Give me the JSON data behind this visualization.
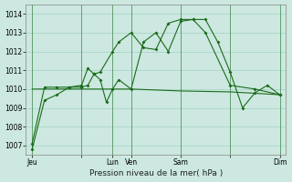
{
  "xlabel": "Pression niveau de la mer( hPa )",
  "bg_color": "#cce8e0",
  "grid_color": "#99ccbb",
  "line_color": "#1a6b1a",
  "ylim": [
    1006.5,
    1014.5
  ],
  "yticks": [
    1007,
    1008,
    1009,
    1010,
    1011,
    1012,
    1013,
    1014
  ],
  "xlim": [
    0,
    42
  ],
  "xtick_positions": [
    1,
    9,
    14,
    17,
    25,
    33,
    41
  ],
  "xtick_labels": [
    "Jeu",
    "",
    "Lun",
    "Ven",
    "Sam",
    "",
    "Dim"
  ],
  "vline_positions": [
    1,
    9,
    14,
    17,
    25,
    33,
    41
  ],
  "series1": {
    "x": [
      1,
      3,
      5,
      7,
      9,
      10,
      11,
      12,
      13,
      14,
      15,
      17,
      19,
      21,
      23,
      25,
      27,
      29,
      31,
      33,
      35,
      37,
      39,
      41
    ],
    "y": [
      1006.8,
      1009.4,
      1009.7,
      1010.1,
      1010.2,
      1011.1,
      1010.8,
      1010.5,
      1009.3,
      1010.0,
      1010.5,
      1010.0,
      1012.5,
      1013.0,
      1012.0,
      1013.6,
      1013.7,
      1013.7,
      1012.5,
      1010.9,
      1009.0,
      1009.8,
      1010.2,
      1009.7
    ]
  },
  "series2": {
    "x": [
      1,
      3,
      5,
      7,
      9,
      10,
      11,
      12,
      14,
      15,
      17,
      19,
      21,
      23,
      25,
      27,
      29,
      33,
      37,
      41
    ],
    "y": [
      1007.1,
      1010.1,
      1010.1,
      1010.1,
      1010.1,
      1010.2,
      1010.8,
      1010.9,
      1012.0,
      1012.5,
      1013.0,
      1012.2,
      1012.1,
      1013.5,
      1013.7,
      1013.7,
      1013.0,
      1010.2,
      1010.0,
      1009.7
    ]
  },
  "series3": {
    "x": [
      1,
      9,
      14,
      17,
      25,
      33,
      41
    ],
    "y": [
      1010.0,
      1010.0,
      1010.0,
      1010.0,
      1009.9,
      1009.85,
      1009.7
    ]
  }
}
